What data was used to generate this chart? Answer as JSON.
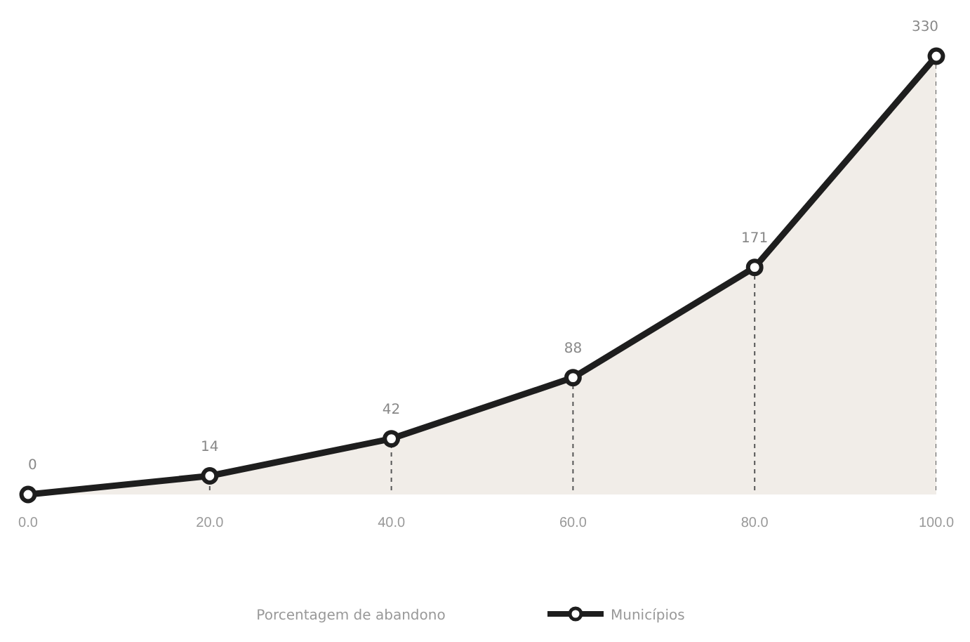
{
  "chart_data": {
    "type": "area",
    "annotations": [
      "Porcentagem de abandono"
    ],
    "x": [
      0,
      20,
      40,
      60,
      80,
      100
    ],
    "xlim": [
      0,
      100
    ],
    "xticks": [
      {
        "value": 0,
        "label": "0.0"
      },
      {
        "value": 20,
        "label": "20.0"
      },
      {
        "value": 40,
        "label": "40.0"
      },
      {
        "value": 60,
        "label": "60.0"
      },
      {
        "value": 80,
        "label": "80.0"
      },
      {
        "value": 100,
        "label": "100.0"
      }
    ],
    "ylim": [
      0,
      330
    ],
    "tick_labels": "x",
    "series": [
      {
        "name": "Municípios",
        "color": "#1e1e1e",
        "values": [
          0,
          14,
          42,
          88,
          171,
          330
        ]
      }
    ],
    "data_labels": true,
    "marker": "circle",
    "line_style": "solid",
    "legend": "bottom",
    "grid": "x"
  }
}
